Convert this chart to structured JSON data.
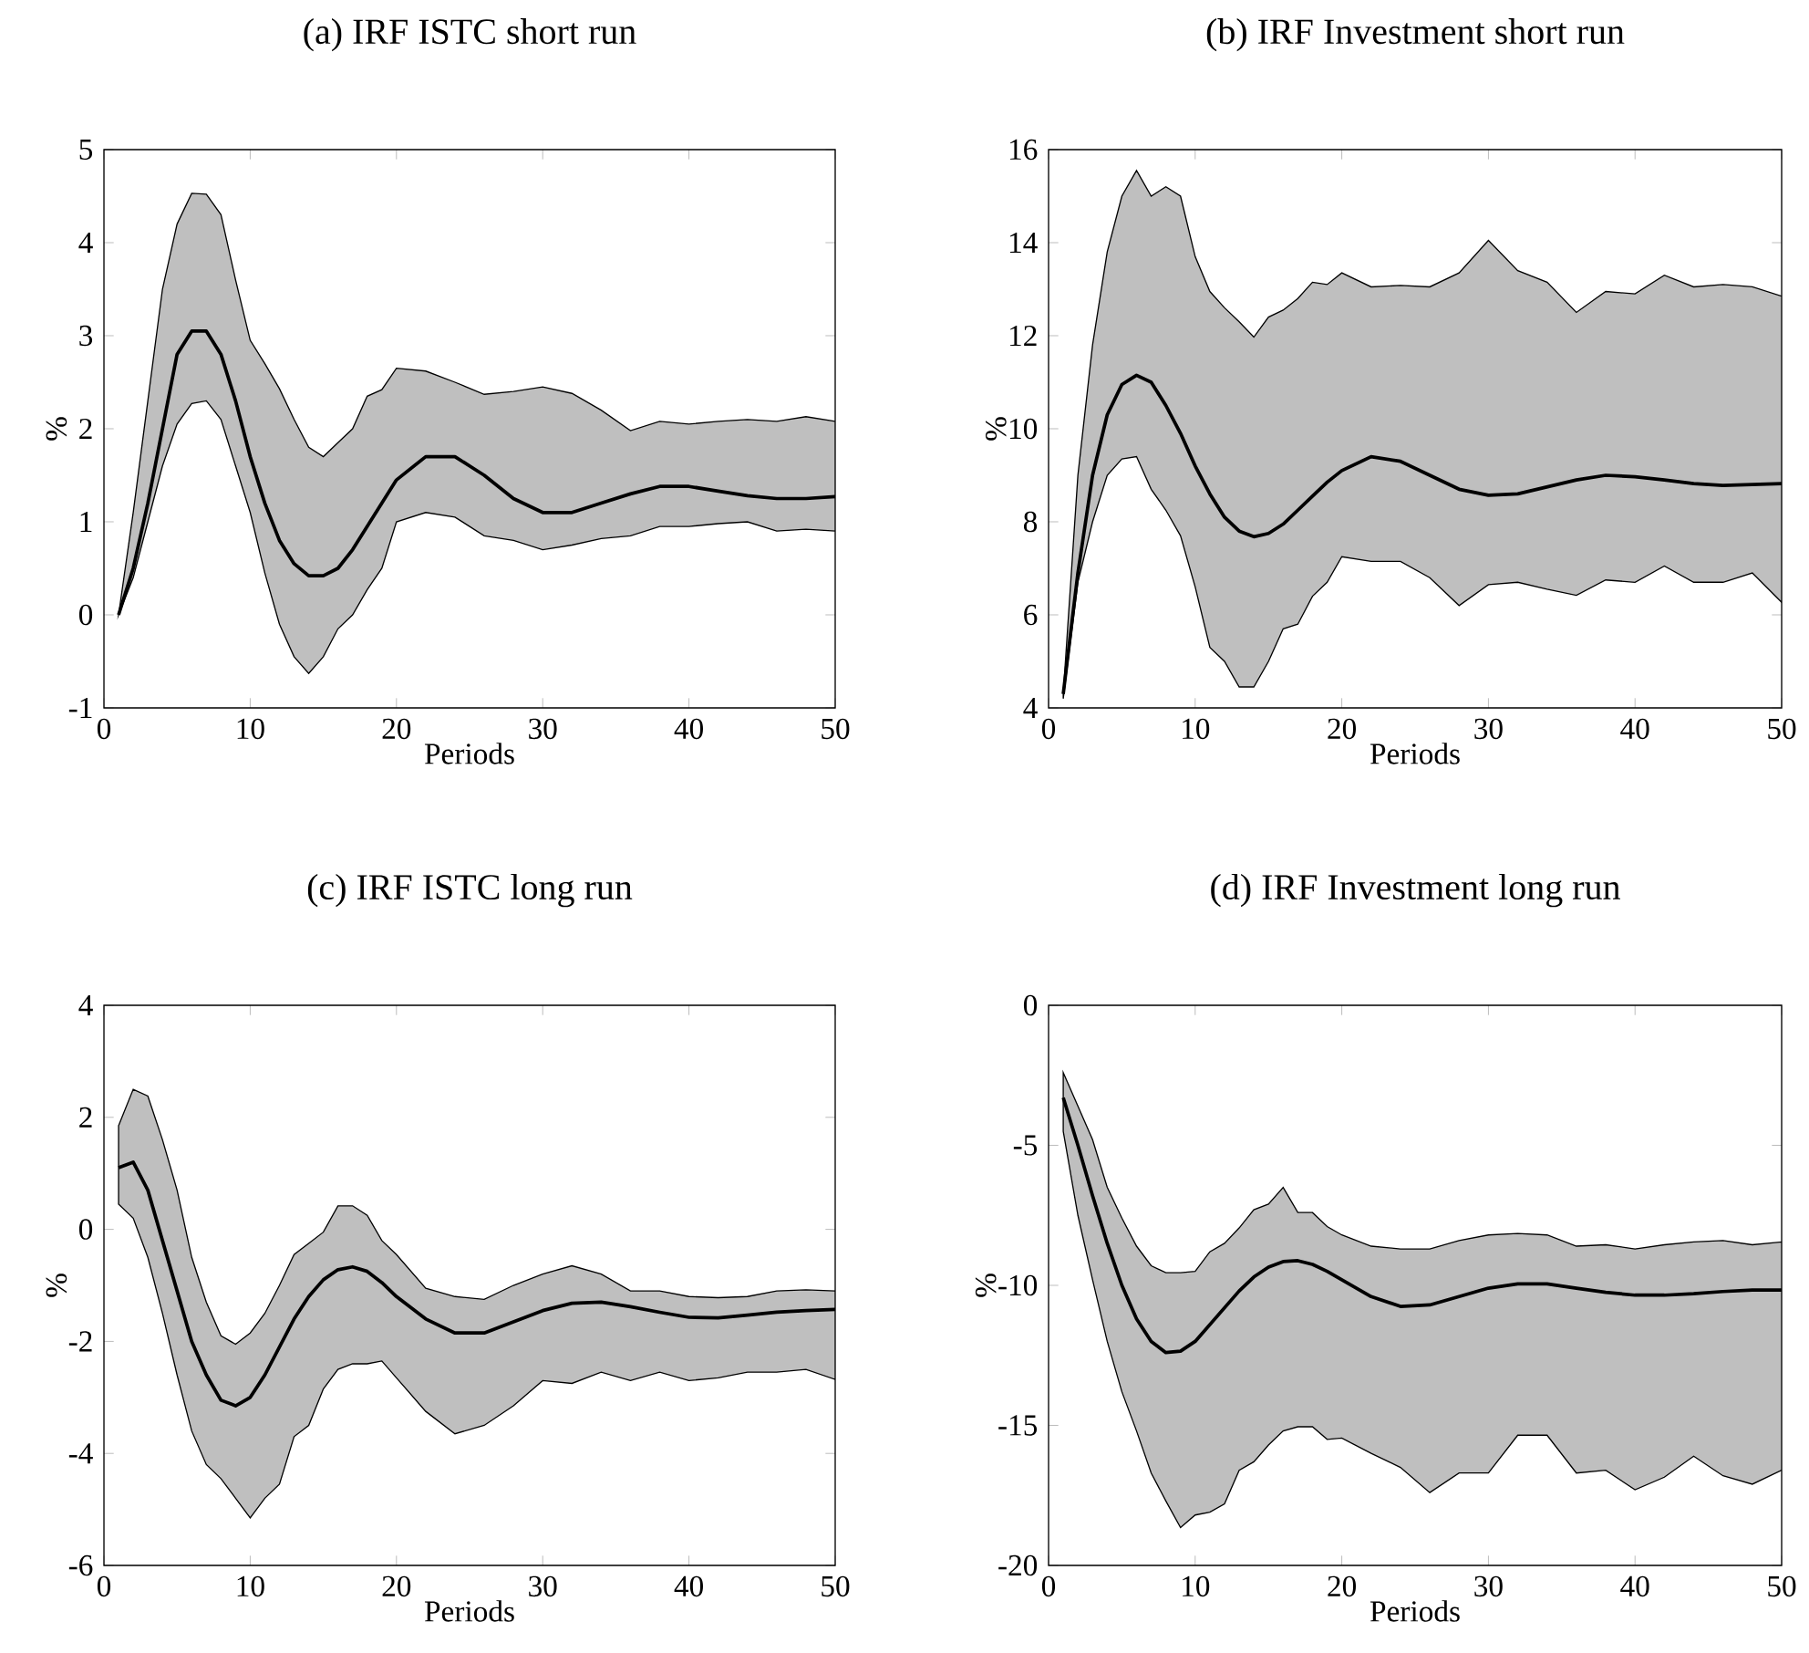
{
  "chart_data": [
    {
      "type": "line",
      "title": "(a)  IRF ISTC short run",
      "xlabel": "Periods",
      "ylabel": "%",
      "x": [
        1,
        2,
        3,
        4,
        5,
        6,
        7,
        8,
        9,
        10,
        11,
        12,
        13,
        14,
        15,
        16,
        17,
        18,
        19,
        20,
        22,
        24,
        26,
        28,
        30,
        32,
        34,
        36,
        38,
        40,
        42,
        44,
        46,
        48,
        50
      ],
      "xlim": [
        0,
        50
      ],
      "ylim": [
        -1,
        5
      ],
      "xticks": [
        0,
        10,
        20,
        30,
        40,
        50
      ],
      "yticks": [
        -1,
        0,
        1,
        2,
        3,
        4,
        5
      ],
      "series": [
        {
          "color": "#000000",
          "values": [
            0,
            0.5,
            1.2,
            2.0,
            2.8,
            3.05,
            3.05,
            2.8,
            2.3,
            1.7,
            1.2,
            0.8,
            0.55,
            0.42,
            0.42,
            0.5,
            0.7,
            0.95,
            1.2,
            1.45,
            1.7,
            1.7,
            1.5,
            1.25,
            1.1,
            1.1,
            1.2,
            1.3,
            1.38,
            1.38,
            1.33,
            1.28,
            1.25,
            1.25,
            1.27
          ],
          "upper": [
            0,
            1.1,
            2.3,
            3.5,
            4.2,
            4.53,
            4.52,
            4.3,
            3.6,
            2.95,
            2.7,
            2.43,
            2.1,
            1.8,
            1.7,
            1.85,
            2.0,
            2.35,
            2.42,
            2.65,
            2.62,
            2.5,
            2.37,
            2.4,
            2.45,
            2.38,
            2.2,
            1.98,
            2.08,
            2.05,
            2.08,
            2.1,
            2.08,
            2.13,
            2.08
          ],
          "lower": [
            0,
            0.4,
            1.0,
            1.6,
            2.05,
            2.27,
            2.3,
            2.1,
            1.6,
            1.1,
            0.45,
            -0.1,
            -0.45,
            -0.63,
            -0.45,
            -0.15,
            0.0,
            0.27,
            0.5,
            1.0,
            1.1,
            1.05,
            0.85,
            0.8,
            0.7,
            0.75,
            0.82,
            0.85,
            0.95,
            0.95,
            0.98,
            1.0,
            0.9,
            0.92,
            0.9
          ]
        }
      ]
    },
    {
      "type": "line",
      "title": "(b)  IRF Investment short run",
      "xlabel": "Periods",
      "ylabel": "%",
      "x": [
        1,
        2,
        3,
        4,
        5,
        6,
        7,
        8,
        9,
        10,
        11,
        12,
        13,
        14,
        15,
        16,
        17,
        18,
        19,
        20,
        22,
        24,
        26,
        28,
        30,
        32,
        34,
        36,
        38,
        40,
        42,
        44,
        46,
        48,
        50
      ],
      "xlim": [
        0,
        50
      ],
      "ylim": [
        4,
        16
      ],
      "xticks": [
        0,
        10,
        20,
        30,
        40,
        50
      ],
      "yticks": [
        4,
        6,
        8,
        10,
        12,
        14,
        16
      ],
      "series": [
        {
          "color": "#000000",
          "values": [
            4.3,
            6.9,
            9.0,
            10.3,
            10.95,
            11.15,
            11.0,
            10.5,
            9.9,
            9.2,
            8.6,
            8.1,
            7.8,
            7.68,
            7.75,
            7.95,
            8.25,
            8.55,
            8.85,
            9.1,
            9.4,
            9.3,
            9.0,
            8.7,
            8.57,
            8.6,
            8.75,
            8.9,
            9.0,
            8.97,
            8.9,
            8.82,
            8.78,
            8.8,
            8.82
          ],
          "upper": [
            4.3,
            9.0,
            11.8,
            13.8,
            15.0,
            15.55,
            15.0,
            15.2,
            15.0,
            13.7,
            12.95,
            12.6,
            12.3,
            11.97,
            12.4,
            12.55,
            12.8,
            13.15,
            13.1,
            13.35,
            13.05,
            13.08,
            13.05,
            13.35,
            14.05,
            13.4,
            13.15,
            12.5,
            12.95,
            12.9,
            13.3,
            13.05,
            13.1,
            13.05,
            12.85
          ],
          "lower": [
            4.2,
            6.7,
            8.0,
            9.0,
            9.35,
            9.4,
            8.7,
            8.25,
            7.7,
            6.6,
            5.3,
            5.0,
            4.45,
            4.45,
            5.0,
            5.7,
            5.8,
            6.4,
            6.7,
            7.25,
            7.15,
            7.15,
            6.8,
            6.2,
            6.65,
            6.7,
            6.55,
            6.42,
            6.75,
            6.7,
            7.05,
            6.7,
            6.7,
            6.9,
            6.27
          ]
        }
      ]
    },
    {
      "type": "line",
      "title": "(c)  IRF ISTC long run",
      "xlabel": "Periods",
      "ylabel": "%",
      "x": [
        1,
        2,
        3,
        4,
        5,
        6,
        7,
        8,
        9,
        10,
        11,
        12,
        13,
        14,
        15,
        16,
        17,
        18,
        19,
        20,
        22,
        24,
        26,
        28,
        30,
        32,
        34,
        36,
        38,
        40,
        42,
        44,
        46,
        48,
        50
      ],
      "xlim": [
        0,
        50
      ],
      "ylim": [
        -6,
        4
      ],
      "xticks": [
        0,
        10,
        20,
        30,
        40,
        50
      ],
      "yticks": [
        -6,
        -4,
        -2,
        0,
        2,
        4
      ],
      "series": [
        {
          "color": "#000000",
          "values": [
            1.1,
            1.2,
            0.7,
            -0.2,
            -1.1,
            -2.0,
            -2.6,
            -3.05,
            -3.15,
            -3.0,
            -2.6,
            -2.1,
            -1.6,
            -1.2,
            -0.9,
            -0.72,
            -0.67,
            -0.75,
            -0.95,
            -1.2,
            -1.6,
            -1.85,
            -1.85,
            -1.65,
            -1.45,
            -1.32,
            -1.3,
            -1.38,
            -1.48,
            -1.57,
            -1.58,
            -1.53,
            -1.48,
            -1.45,
            -1.43
          ],
          "upper": [
            1.85,
            2.5,
            2.38,
            1.6,
            0.7,
            -0.5,
            -1.3,
            -1.9,
            -2.05,
            -1.85,
            -1.5,
            -1.0,
            -0.45,
            -0.25,
            -0.05,
            0.42,
            0.42,
            0.25,
            -0.2,
            -0.45,
            -1.05,
            -1.2,
            -1.25,
            -1.0,
            -0.8,
            -0.65,
            -0.8,
            -1.1,
            -1.1,
            -1.2,
            -1.22,
            -1.2,
            -1.1,
            -1.08,
            -1.1
          ],
          "lower": [
            0.45,
            0.2,
            -0.5,
            -1.5,
            -2.6,
            -3.6,
            -4.2,
            -4.45,
            -4.8,
            -5.15,
            -4.8,
            -4.55,
            -3.7,
            -3.5,
            -2.85,
            -2.5,
            -2.4,
            -2.4,
            -2.35,
            -2.65,
            -3.25,
            -3.65,
            -3.5,
            -3.15,
            -2.7,
            -2.75,
            -2.55,
            -2.7,
            -2.55,
            -2.7,
            -2.65,
            -2.55,
            -2.55,
            -2.5,
            -2.68
          ]
        }
      ]
    },
    {
      "type": "line",
      "title": "(d)  IRF Investment long run",
      "xlabel": "Periods",
      "ylabel": "%",
      "x": [
        1,
        2,
        3,
        4,
        5,
        6,
        7,
        8,
        9,
        10,
        11,
        12,
        13,
        14,
        15,
        16,
        17,
        18,
        19,
        20,
        22,
        24,
        26,
        28,
        30,
        32,
        34,
        36,
        38,
        40,
        42,
        44,
        46,
        48,
        50
      ],
      "xlim": [
        0,
        50
      ],
      "ylim": [
        -20,
        0
      ],
      "xticks": [
        0,
        10,
        20,
        30,
        40,
        50
      ],
      "yticks": [
        -20,
        -15,
        -10,
        -5,
        0
      ],
      "series": [
        {
          "color": "#000000",
          "values": [
            -3.3,
            -5.0,
            -6.8,
            -8.5,
            -10.0,
            -11.2,
            -12.0,
            -12.4,
            -12.35,
            -12.0,
            -11.4,
            -10.8,
            -10.2,
            -9.7,
            -9.35,
            -9.15,
            -9.12,
            -9.25,
            -9.5,
            -9.8,
            -10.4,
            -10.75,
            -10.7,
            -10.4,
            -10.1,
            -9.95,
            -9.95,
            -10.1,
            -10.25,
            -10.35,
            -10.35,
            -10.3,
            -10.22,
            -10.17,
            -10.17
          ],
          "upper": [
            -2.4,
            -3.6,
            -4.8,
            -6.5,
            -7.6,
            -8.6,
            -9.3,
            -9.55,
            -9.55,
            -9.5,
            -8.8,
            -8.5,
            -7.95,
            -7.3,
            -7.1,
            -6.5,
            -7.4,
            -7.4,
            -7.9,
            -8.2,
            -8.6,
            -8.7,
            -8.7,
            -8.4,
            -8.2,
            -8.15,
            -8.2,
            -8.6,
            -8.55,
            -8.7,
            -8.55,
            -8.45,
            -8.4,
            -8.55,
            -8.45
          ],
          "lower": [
            -4.5,
            -7.5,
            -9.8,
            -12.0,
            -13.8,
            -15.2,
            -16.7,
            -17.7,
            -18.65,
            -18.2,
            -18.1,
            -17.8,
            -16.6,
            -16.3,
            -15.7,
            -15.2,
            -15.05,
            -15.05,
            -15.5,
            -15.45,
            -16.0,
            -16.5,
            -17.4,
            -16.7,
            -16.7,
            -15.35,
            -15.35,
            -16.7,
            -16.6,
            -17.3,
            -16.85,
            -16.1,
            -16.8,
            -17.1,
            -16.6
          ]
        }
      ]
    }
  ]
}
